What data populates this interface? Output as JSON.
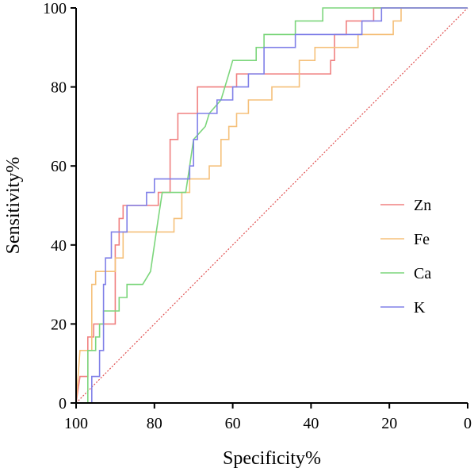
{
  "chart_data": {
    "type": "line",
    "title": "",
    "xlabel": "Specificity%",
    "ylabel": "Sensitivity%",
    "x_reversed": true,
    "xlim": [
      100,
      0
    ],
    "ylim": [
      0,
      100
    ],
    "xticks": [
      "100",
      "80",
      "60",
      "40",
      "20",
      "0"
    ],
    "yticks": [
      "0",
      "20",
      "40",
      "60",
      "80",
      "100"
    ],
    "grid": false,
    "legend_position": "right",
    "reference_line": {
      "style": "dotted",
      "color": "#e05050",
      "points": [
        [
          100,
          0
        ],
        [
          0,
          100
        ]
      ]
    },
    "series": [
      {
        "name": "Zn",
        "color": "#f08080",
        "points": [
          [
            100,
            0
          ],
          [
            99,
            6.7
          ],
          [
            97,
            6.7
          ],
          [
            97,
            16.7
          ],
          [
            95.5,
            16.7
          ],
          [
            95.5,
            20
          ],
          [
            90,
            20
          ],
          [
            90,
            40
          ],
          [
            89,
            40
          ],
          [
            89,
            46.7
          ],
          [
            88,
            46.7
          ],
          [
            88,
            50
          ],
          [
            79,
            50
          ],
          [
            79,
            53.3
          ],
          [
            76,
            53.3
          ],
          [
            76,
            66.7
          ],
          [
            74,
            66.7
          ],
          [
            74,
            73.3
          ],
          [
            69,
            73.3
          ],
          [
            69,
            80
          ],
          [
            59,
            80
          ],
          [
            59,
            83.3
          ],
          [
            35,
            83.3
          ],
          [
            35,
            86.7
          ],
          [
            34,
            86.7
          ],
          [
            34,
            93.3
          ],
          [
            31,
            93.3
          ],
          [
            31,
            96.7
          ],
          [
            24,
            96.7
          ],
          [
            24,
            100
          ],
          [
            0,
            100
          ]
        ]
      },
      {
        "name": "Fe",
        "color": "#f5c07a",
        "points": [
          [
            100,
            0
          ],
          [
            99,
            13.3
          ],
          [
            96,
            13.3
          ],
          [
            96,
            30
          ],
          [
            95,
            30
          ],
          [
            95,
            33.3
          ],
          [
            90,
            33.3
          ],
          [
            90,
            36.7
          ],
          [
            88,
            36.7
          ],
          [
            88,
            43.3
          ],
          [
            75,
            43.3
          ],
          [
            75,
            46.7
          ],
          [
            73,
            46.7
          ],
          [
            73,
            53.3
          ],
          [
            71,
            53.3
          ],
          [
            71,
            56.7
          ],
          [
            66,
            56.7
          ],
          [
            66,
            60
          ],
          [
            63,
            60
          ],
          [
            63,
            66.7
          ],
          [
            61,
            66.7
          ],
          [
            61,
            70
          ],
          [
            59,
            70
          ],
          [
            59,
            73.3
          ],
          [
            56,
            73.3
          ],
          [
            56,
            76.7
          ],
          [
            50,
            76.7
          ],
          [
            50,
            80
          ],
          [
            43,
            80
          ],
          [
            43,
            86.7
          ],
          [
            39,
            86.7
          ],
          [
            39,
            90
          ],
          [
            28,
            90
          ],
          [
            28,
            93.3
          ],
          [
            19,
            93.3
          ],
          [
            19,
            96.7
          ],
          [
            17,
            96.7
          ],
          [
            17,
            100
          ],
          [
            0,
            100
          ]
        ]
      },
      {
        "name": "Ca",
        "color": "#7cd67c",
        "points": [
          [
            100,
            0
          ],
          [
            97,
            0
          ],
          [
            97,
            13.3
          ],
          [
            95,
            13.3
          ],
          [
            95,
            16.7
          ],
          [
            94,
            16.7
          ],
          [
            94,
            20
          ],
          [
            93,
            20
          ],
          [
            93,
            23.3
          ],
          [
            89,
            23.3
          ],
          [
            89,
            26.7
          ],
          [
            87,
            26.7
          ],
          [
            87,
            30
          ],
          [
            83,
            30
          ],
          [
            81,
            33.3
          ],
          [
            80,
            40
          ],
          [
            79,
            46.7
          ],
          [
            78,
            53.3
          ],
          [
            72,
            53.3
          ],
          [
            71,
            60
          ],
          [
            70,
            66.7
          ],
          [
            67,
            70
          ],
          [
            66,
            73.3
          ],
          [
            63,
            76.7
          ],
          [
            61,
            83.3
          ],
          [
            60,
            86.7
          ],
          [
            54,
            86.7
          ],
          [
            54,
            90
          ],
          [
            52,
            90
          ],
          [
            52,
            93.3
          ],
          [
            44,
            93.3
          ],
          [
            44,
            96.7
          ],
          [
            37,
            96.7
          ],
          [
            37,
            100
          ],
          [
            0,
            100
          ]
        ]
      },
      {
        "name": "K",
        "color": "#8080e8",
        "points": [
          [
            96,
            0
          ],
          [
            96,
            6.7
          ],
          [
            94,
            6.7
          ],
          [
            94,
            13.3
          ],
          [
            93,
            13.3
          ],
          [
            93,
            30
          ],
          [
            92.5,
            30
          ],
          [
            92.5,
            36.7
          ],
          [
            91,
            36.7
          ],
          [
            91,
            43.3
          ],
          [
            87,
            43.3
          ],
          [
            87,
            50
          ],
          [
            82,
            50
          ],
          [
            82,
            53.3
          ],
          [
            80,
            53.3
          ],
          [
            80,
            56.7
          ],
          [
            71,
            56.7
          ],
          [
            71,
            60
          ],
          [
            70,
            60
          ],
          [
            70,
            66.7
          ],
          [
            69,
            66.7
          ],
          [
            69,
            73.3
          ],
          [
            64,
            73.3
          ],
          [
            64,
            76.7
          ],
          [
            60,
            76.7
          ],
          [
            60,
            80
          ],
          [
            56,
            80
          ],
          [
            56,
            83.3
          ],
          [
            52,
            83.3
          ],
          [
            52,
            90
          ],
          [
            44,
            90
          ],
          [
            44,
            93.3
          ],
          [
            27,
            93.3
          ],
          [
            27,
            96.7
          ],
          [
            22,
            96.7
          ],
          [
            22,
            100
          ],
          [
            0,
            100
          ]
        ]
      }
    ]
  }
}
